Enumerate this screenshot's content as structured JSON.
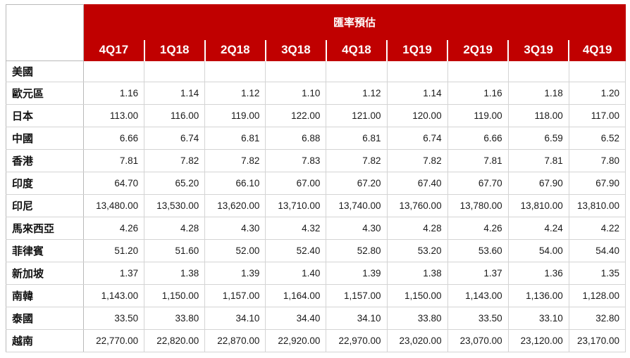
{
  "header": {
    "title": "匯率預估",
    "quarters": [
      "4Q17",
      "1Q18",
      "2Q18",
      "3Q18",
      "4Q18",
      "1Q19",
      "2Q19",
      "3Q19",
      "4Q19"
    ]
  },
  "rows": [
    {
      "label": "美國",
      "values": [
        "",
        "",
        "",
        "",
        "",
        "",
        "",
        "",
        ""
      ]
    },
    {
      "label": "歐元區",
      "values": [
        "1.16",
        "1.14",
        "1.12",
        "1.10",
        "1.12",
        "1.14",
        "1.16",
        "1.18",
        "1.20"
      ]
    },
    {
      "label": "日本",
      "values": [
        "113.00",
        "116.00",
        "119.00",
        "122.00",
        "121.00",
        "120.00",
        "119.00",
        "118.00",
        "117.00"
      ]
    },
    {
      "label": "中國",
      "values": [
        "6.66",
        "6.74",
        "6.81",
        "6.88",
        "6.81",
        "6.74",
        "6.66",
        "6.59",
        "6.52"
      ]
    },
    {
      "label": "香港",
      "values": [
        "7.81",
        "7.82",
        "7.82",
        "7.83",
        "7.82",
        "7.82",
        "7.81",
        "7.81",
        "7.80"
      ]
    },
    {
      "label": "印度",
      "values": [
        "64.70",
        "65.20",
        "66.10",
        "67.00",
        "67.20",
        "67.40",
        "67.70",
        "67.90",
        "67.90"
      ]
    },
    {
      "label": "印尼",
      "values": [
        "13,480.00",
        "13,530.00",
        "13,620.00",
        "13,710.00",
        "13,740.00",
        "13,760.00",
        "13,780.00",
        "13,810.00",
        "13,810.00"
      ]
    },
    {
      "label": "馬來西亞",
      "values": [
        "4.26",
        "4.28",
        "4.30",
        "4.32",
        "4.30",
        "4.28",
        "4.26",
        "4.24",
        "4.22"
      ]
    },
    {
      "label": "菲律賓",
      "values": [
        "51.20",
        "51.60",
        "52.00",
        "52.40",
        "52.80",
        "53.20",
        "53.60",
        "54.00",
        "54.40"
      ]
    },
    {
      "label": "新加坡",
      "values": [
        "1.37",
        "1.38",
        "1.39",
        "1.40",
        "1.39",
        "1.38",
        "1.37",
        "1.36",
        "1.35"
      ]
    },
    {
      "label": "南韓",
      "values": [
        "1,143.00",
        "1,150.00",
        "1,157.00",
        "1,164.00",
        "1,157.00",
        "1,150.00",
        "1,143.00",
        "1,136.00",
        "1,128.00"
      ]
    },
    {
      "label": "泰國",
      "values": [
        "33.50",
        "33.80",
        "34.10",
        "34.40",
        "34.10",
        "33.80",
        "33.50",
        "33.10",
        "32.80"
      ]
    },
    {
      "label": "越南",
      "values": [
        "22,770.00",
        "22,820.00",
        "22,870.00",
        "22,920.00",
        "22,970.00",
        "23,020.00",
        "23,070.00",
        "23,120.00",
        "23,170.00"
      ]
    }
  ],
  "colors": {
    "header_bg": "#c00000",
    "header_text": "#ffffff"
  }
}
